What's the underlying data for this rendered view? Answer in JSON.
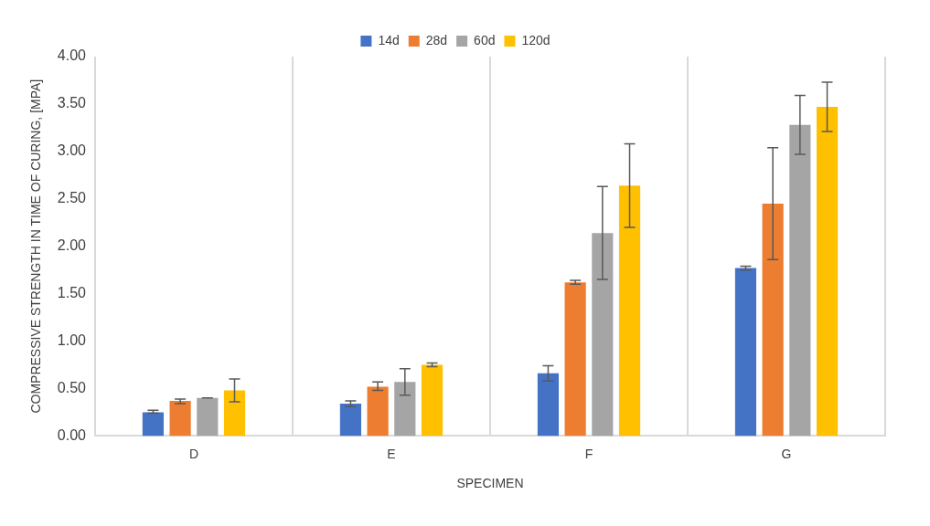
{
  "chart_data": {
    "type": "bar",
    "xlabel": "SPECIMEN",
    "ylabel": "COMPRESSIVE STRENGTH IN TIME OF CURING, [MPA]",
    "categories": [
      "D",
      "E",
      "F",
      "G"
    ],
    "series": [
      {
        "name": "14d",
        "color": "#4472c4",
        "values": [
          0.25,
          0.34,
          0.66,
          1.77
        ],
        "errors": [
          [
            0.24,
            0.27
          ],
          [
            0.31,
            0.37
          ],
          [
            0.58,
            0.74
          ],
          [
            1.75,
            1.79
          ]
        ]
      },
      {
        "name": "28d",
        "color": "#ed7d31",
        "values": [
          0.37,
          0.52,
          1.62,
          2.45
        ],
        "errors": [
          [
            0.34,
            0.39
          ],
          [
            0.48,
            0.57
          ],
          [
            1.6,
            1.64
          ],
          [
            1.86,
            3.04
          ]
        ]
      },
      {
        "name": "60d",
        "color": "#a5a5a5",
        "values": [
          0.4,
          0.57,
          2.14,
          3.28
        ],
        "errors": [
          [
            0.4,
            0.4
          ],
          [
            0.43,
            0.71
          ],
          [
            1.65,
            2.63
          ],
          [
            2.97,
            3.59
          ]
        ]
      },
      {
        "name": "120d",
        "color": "#ffc000",
        "values": [
          0.48,
          0.75,
          2.64,
          3.47
        ],
        "errors": [
          [
            0.36,
            0.6
          ],
          [
            0.73,
            0.77
          ],
          [
            2.2,
            3.08
          ],
          [
            3.21,
            3.73
          ]
        ]
      }
    ],
    "ylim": [
      0,
      4
    ],
    "yticks": [
      {
        "value": 0,
        "label": "0.00"
      },
      {
        "value": 0.5,
        "label": "0.50"
      },
      {
        "value": 1,
        "label": "1.00"
      },
      {
        "value": 1.5,
        "label": "1.50"
      },
      {
        "value": 2,
        "label": "2.00"
      },
      {
        "value": 2.5,
        "label": "2.50"
      },
      {
        "value": 3,
        "label": "3.00"
      },
      {
        "value": 3.5,
        "label": "3.50"
      },
      {
        "value": 4,
        "label": "4.00"
      }
    ],
    "grid": "x",
    "legend": "top"
  }
}
